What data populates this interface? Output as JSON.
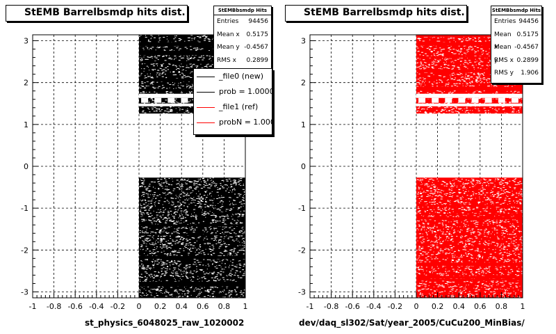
{
  "chart_data": [
    {
      "type": "scatter",
      "title": "StEMB Barrelbsmdp hits dist.",
      "xlabel": "st_physics_6048025_raw_1020002",
      "xlim": [
        -1,
        1
      ],
      "ylim": [
        -3.1416,
        3.1416
      ],
      "x_ticks": [
        "-1",
        "-0.8",
        "-0.6",
        "-0.4",
        "-0.2",
        "0",
        "0.2",
        "0.4",
        "0.6",
        "0.8",
        "1"
      ],
      "y_ticks": [
        "3",
        "2",
        "1",
        "0",
        "-1",
        "-2",
        "-3"
      ],
      "grid": true,
      "marker_color": "#000000",
      "filled_regions": [
        {
          "x_range": [
            0,
            1
          ],
          "y_range": [
            1.26,
            3.14
          ]
        },
        {
          "x_range": [
            0,
            1
          ],
          "y_range": [
            -3.14,
            -0.27
          ]
        }
      ],
      "gap_band_y": [
        1.4,
        1.6
      ],
      "stats": {
        "header": "StEMBbsmdp Hits",
        "rows": [
          {
            "label": "Entries",
            "value": "94456"
          },
          {
            "label": "Mean x",
            "value": "0.5175"
          },
          {
            "label": "Mean y",
            "value": "-0.4567"
          },
          {
            "label": "RMS x",
            "value": "0.2899"
          }
        ]
      },
      "legend": [
        {
          "label": "_file0 (new)",
          "color": "#000000"
        },
        {
          "label": "prob = 1.000000",
          "color": "#000000"
        },
        {
          "label": "_file1 (ref)",
          "color": "#ff0000"
        },
        {
          "label": "probN = 1.000000",
          "color": "#ff0000"
        }
      ]
    },
    {
      "type": "scatter",
      "title": "StEMB Barrelbsmdp hits dist.",
      "xlabel": "dev/daq_sl302/Sat/year_2005/CuCu200_MinBias/",
      "xlim": [
        -1,
        1
      ],
      "ylim": [
        -3.1416,
        3.1416
      ],
      "x_ticks": [
        "-1",
        "-0.8",
        "-0.6",
        "-0.4",
        "-0.2",
        "0",
        "0.2",
        "0.4",
        "0.6",
        "0.8",
        "1"
      ],
      "y_ticks": [
        "3",
        "2",
        "1",
        "0",
        "-1",
        "-2",
        "-3"
      ],
      "grid": true,
      "marker_color": "#ff0000",
      "filled_regions": [
        {
          "x_range": [
            0,
            1
          ],
          "y_range": [
            1.26,
            3.14
          ]
        },
        {
          "x_range": [
            0,
            1
          ],
          "y_range": [
            -3.14,
            -0.27
          ]
        }
      ],
      "gap_band_y": [
        1.4,
        1.6
      ],
      "stats": {
        "header": "StEMBbsmdp Hits",
        "rows": [
          {
            "label": "Entries",
            "value": "94456"
          },
          {
            "label": "Mean x",
            "value": "0.5175"
          },
          {
            "label": "Mean y",
            "value": "-0.4567"
          },
          {
            "label": "RMS x",
            "value": "0.2899"
          },
          {
            "label": "RMS y",
            "value": "1.906"
          }
        ]
      }
    }
  ]
}
